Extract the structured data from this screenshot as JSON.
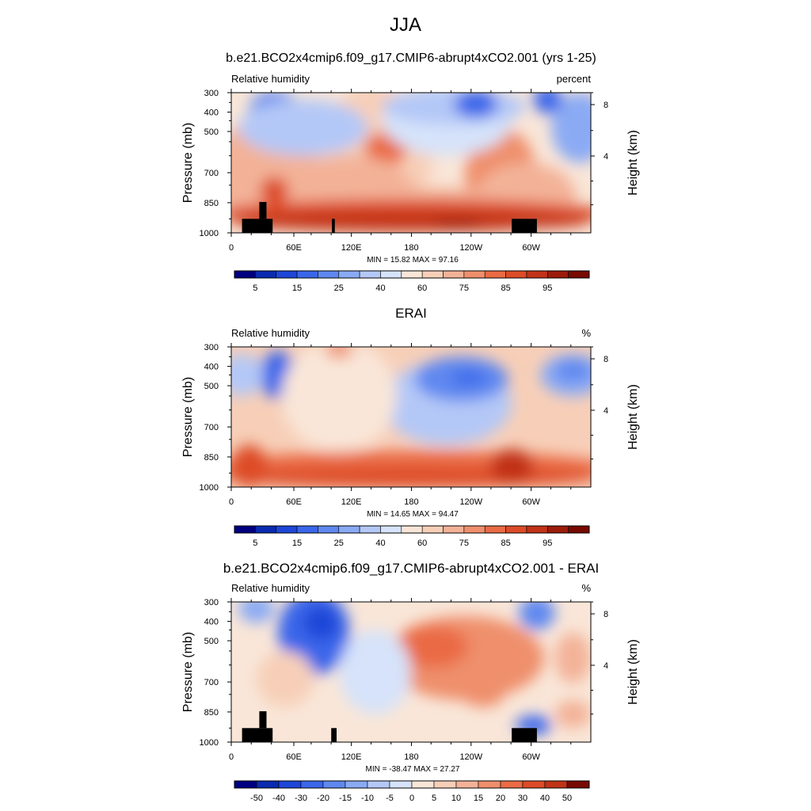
{
  "figure_title": "JJA",
  "chart_data": [
    {
      "type": "heatmap",
      "title": "b.e21.BCO2x4cmip6.f09_g17.CMIP6-abrupt4xCO2.001 (yrs 1-25)",
      "subtitle_left": "Relative humidity",
      "subtitle_right": "percent",
      "xlabel": "",
      "ylabel": "Pressure (mb)",
      "y2label": "Height (km)",
      "x_ticks": [
        "0",
        "60E",
        "120E",
        "180",
        "120W",
        "60W"
      ],
      "y_ticks": [
        "300",
        "400",
        "500",
        "700",
        "850",
        "1000"
      ],
      "y2_ticks": [
        "8",
        "4"
      ],
      "stats": "MIN =  15.82  MAX =  97.16",
      "colorbar_labels": [
        "5",
        "15",
        "25",
        "40",
        "60",
        "75",
        "85",
        "95"
      ],
      "colorbar_levels": [
        5,
        10,
        15,
        20,
        25,
        30,
        40,
        50,
        60,
        65,
        70,
        75,
        80,
        85,
        90,
        95
      ],
      "min": 15.82,
      "max": 97.16,
      "colors": [
        "#000080",
        "#0a2bb0",
        "#1e46d8",
        "#3a66ea",
        "#5f88f0",
        "#8aaaf4",
        "#b4c8f7",
        "#d6e3fa",
        "#f9e6d8",
        "#f7cfb8",
        "#f3b298",
        "#ef8f6c",
        "#ea6b45",
        "#dd4c27",
        "#c13318",
        "#9c1c0a",
        "#780a00"
      ]
    },
    {
      "type": "heatmap",
      "title": "ERAI",
      "subtitle_left": "Relative humidity",
      "subtitle_right": "%",
      "xlabel": "",
      "ylabel": "Pressure (mb)",
      "y2label": "Height (km)",
      "x_ticks": [
        "0",
        "60E",
        "120E",
        "180",
        "120W",
        "60W"
      ],
      "y_ticks": [
        "300",
        "400",
        "500",
        "700",
        "850",
        "1000"
      ],
      "y2_ticks": [
        "8",
        "4"
      ],
      "stats": "MIN =  14.65  MAX =  94.47",
      "colorbar_labels": [
        "5",
        "15",
        "25",
        "40",
        "60",
        "75",
        "85",
        "95"
      ],
      "colorbar_levels": [
        5,
        10,
        15,
        20,
        25,
        30,
        40,
        50,
        60,
        65,
        70,
        75,
        80,
        85,
        90,
        95
      ],
      "min": 14.65,
      "max": 94.47,
      "colors": [
        "#000080",
        "#0a2bb0",
        "#1e46d8",
        "#3a66ea",
        "#5f88f0",
        "#8aaaf4",
        "#b4c8f7",
        "#d6e3fa",
        "#f9e6d8",
        "#f7cfb8",
        "#f3b298",
        "#ef8f6c",
        "#ea6b45",
        "#dd4c27",
        "#c13318",
        "#9c1c0a",
        "#780a00"
      ]
    },
    {
      "type": "heatmap",
      "title": "b.e21.BCO2x4cmip6.f09_g17.CMIP6-abrupt4xCO2.001 - ERAI",
      "subtitle_left": "Relative humidity",
      "subtitle_right": "%",
      "xlabel": "",
      "ylabel": "Pressure (mb)",
      "y2label": "Height (km)",
      "x_ticks": [
        "0",
        "60E",
        "120E",
        "180",
        "120W",
        "60W"
      ],
      "y_ticks": [
        "300",
        "400",
        "500",
        "700",
        "850",
        "1000"
      ],
      "y2_ticks": [
        "8",
        "4"
      ],
      "stats": "MIN = -38.47  MAX =  27.27",
      "colorbar_labels": [
        "-50",
        "-40",
        "-30",
        "-20",
        "-15",
        "-10",
        "-5",
        "0",
        "5",
        "10",
        "15",
        "20",
        "30",
        "40",
        "50"
      ],
      "colorbar_levels": [
        -50,
        -40,
        -30,
        -20,
        -15,
        -10,
        -5,
        0,
        5,
        10,
        15,
        20,
        30,
        40,
        50
      ],
      "min": -38.47,
      "max": 27.27,
      "colors": [
        "#000080",
        "#0a2bb0",
        "#1e46d8",
        "#3a66ea",
        "#5f88f0",
        "#8aaaf4",
        "#b4c8f7",
        "#d6e3fa",
        "#f9e6d8",
        "#f7cfb8",
        "#f3b298",
        "#ef8f6c",
        "#ea6b45",
        "#dd4c27",
        "#c13318",
        "#780a00"
      ]
    }
  ]
}
